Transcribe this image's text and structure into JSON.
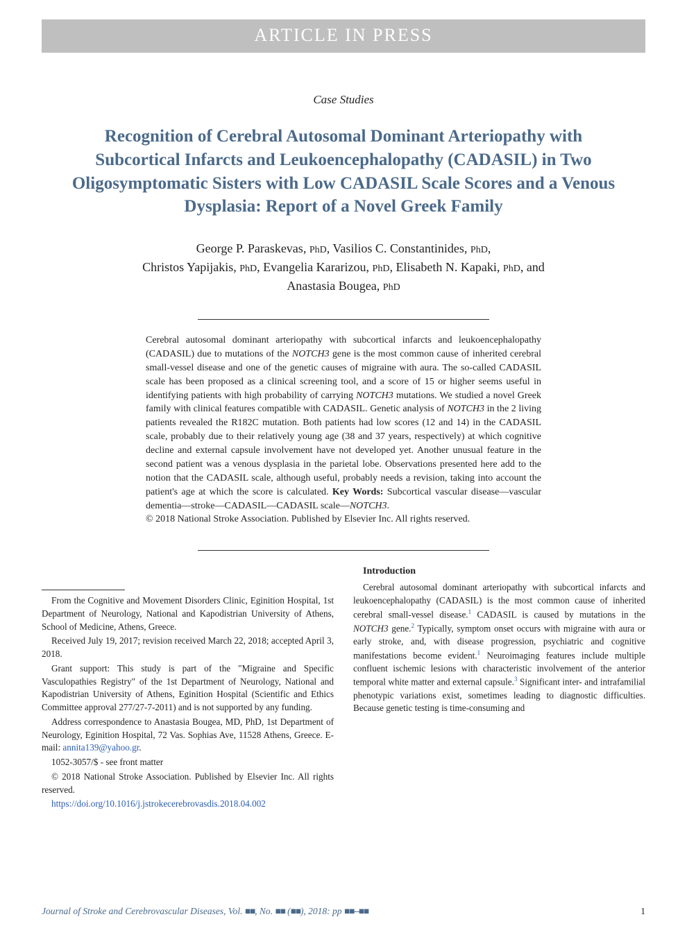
{
  "banner": "ARTICLE IN PRESS",
  "section_label": "Case Studies",
  "title": "Recognition of Cerebral Autosomal Dominant Arteriopathy with Subcortical Infarcts and Leukoencephalopathy (CADASIL) in Two Oligosymptomatic Sisters with Low CADASIL Scale Scores and a Venous Dysplasia: Report of a Novel Greek Family",
  "authors": [
    {
      "name": "George P. Paraskevas",
      "degree": "PhD"
    },
    {
      "name": "Vasilios C. Constantinides",
      "degree": "PhD"
    },
    {
      "name": "Christos Yapijakis",
      "degree": "PhD"
    },
    {
      "name": "Evangelia Kararizou",
      "degree": "PhD"
    },
    {
      "name": "Elisabeth N. Kapaki",
      "degree": "PhD"
    },
    {
      "name": "Anastasia Bougea",
      "degree": "PhD"
    }
  ],
  "abstract": {
    "body_pre": "Cerebral autosomal dominant arteriopathy with subcortical infarcts and leukoencephalopathy (CADASIL) due to mutations of the ",
    "gene1": "NOTCH3",
    "body_mid1": " gene is the most common cause of inherited cerebral small-vessel disease and one of the genetic causes of migraine with aura. The so-called CADASIL scale has been proposed as a clinical screening tool, and a score of 15 or higher seems useful in identifying patients with high probability of carrying ",
    "gene2": "NOTCH3",
    "body_mid2": " mutations. We studied a novel Greek family with clinical features compatible with CADASIL. Genetic analysis of ",
    "gene3": "NOTCH3",
    "body_mid3": " in the 2 living patients revealed the R182C mutation. Both patients had low scores (12 and 14) in the CADASIL scale, probably due to their relatively young age (38 and 37 years, respectively) at which cognitive decline and external capsule involvement have not developed yet. Another unusual feature in the second patient was a venous dysplasia in the parietal lobe. Observations presented here add to the notion that the CADASIL scale, although useful, probably needs a revision, taking into account the patient's age at which the score is calculated. ",
    "kw_label": "Key Words:",
    "keywords": " Subcortical vascular disease—vascular dementia—stroke—CADASIL—CADASIL scale—",
    "gene4": "NOTCH3",
    "period": ".",
    "copyright": "© 2018 National Stroke Association. Published by Elsevier Inc. All rights reserved."
  },
  "footnotes": {
    "affil": "From the Cognitive and Movement Disorders Clinic, Eginition Hospital, 1st Department of Neurology, National and Kapodistrian University of Athens, School of Medicine, Athens, Greece.",
    "dates": "Received July 19, 2017; revision received March 22, 2018; accepted April 3, 2018.",
    "grant": "Grant support: This study is part of the \"Migraine and Specific Vasculopathies Registry\" of the 1st Department of Neurology, National and Kapodistrian University of Athens, Eginition Hospital (Scientific and Ethics Committee approval 277/27-7-2011) and is not supported by any funding.",
    "address_pre": "Address correspondence to Anastasia Bougea, MD, PhD, 1st Department of Neurology, Eginition Hospital, 72 Vas. Sophias Ave, 11528 Athens, Greece. E-mail: ",
    "email": "annita139@yahoo.gr",
    "address_post": ".",
    "issn": "1052-3057/$ - see front matter",
    "copy": "© 2018 National Stroke Association. Published by Elsevier Inc. All rights reserved.",
    "doi": "https://doi.org/10.1016/j.jstrokecerebrovasdis.2018.04.002"
  },
  "intro": {
    "heading": "Introduction",
    "p1_a": "Cerebral autosomal dominant arteriopathy with subcortical infarcts and leukoencephalopathy (CADASIL) is the most common cause of inherited cerebral small-vessel disease.",
    "ref1": "1",
    "p1_b": " CADASIL is caused by mutations in the ",
    "gene": "NOTCH3",
    "p1_c": " gene.",
    "ref2": "2",
    "p1_d": " Typically, symptom onset occurs with migraine with aura or early stroke, and, with disease progression, psychiatric and cognitive manifestations become evident.",
    "ref3": "1",
    "p1_e": " Neuroimaging features include multiple confluent ischemic lesions with characteristic involvement of the anterior temporal white matter and external capsule.",
    "ref4": "3",
    "p1_f": " Significant inter- and intrafamilial phenotypic variations exist, sometimes leading to diagnostic difficulties. Because genetic testing is time-consuming and"
  },
  "footer": {
    "journal": "Journal of Stroke and Cerebrovascular Diseases",
    "vol_text": ", Vol. ",
    "block1": "■■",
    "no_text": ", No. ",
    "block2": "■■",
    "paren_open": " (",
    "block3": "■■",
    "after_paren": "), 2018: pp ",
    "block4": "■■–■■",
    "page_number": "1"
  },
  "colors": {
    "banner_bg": "#bfbfbf",
    "banner_text": "#ffffff",
    "title_color": "#4b6a8a",
    "link_color": "#2a5db0",
    "body_text": "#222222"
  }
}
